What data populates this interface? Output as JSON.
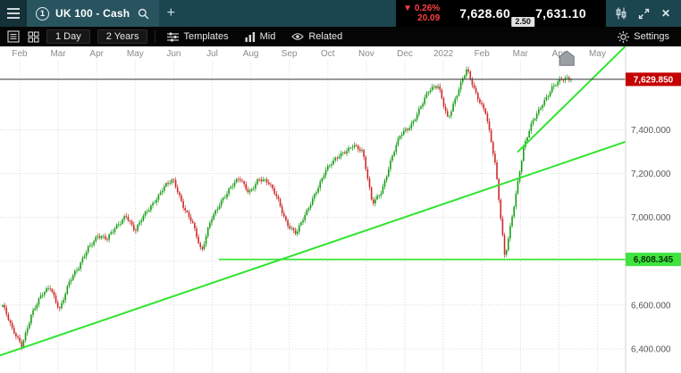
{
  "topbar": {
    "instrument_badge": "1",
    "title": "UK 100 - Cash",
    "add_label": "+",
    "change_arrow": "▼",
    "change_pct": "0.26%",
    "change_abs": "20.09",
    "sell_price": "7,628.60",
    "buy_price": "7,631.10",
    "spread": "2.50",
    "close_label": "✕"
  },
  "toolbar": {
    "interval": "1 Day",
    "range": "2 Years",
    "templates": "Templates",
    "price_type": "Mid",
    "related": "Related",
    "settings": "Settings"
  },
  "chart_data": {
    "type": "candlestick",
    "x_labels": [
      "Feb",
      "Mar",
      "Apr",
      "May",
      "Jun",
      "Jul",
      "Aug",
      "Sep",
      "Oct",
      "Nov",
      "Dec",
      "2022",
      "Feb",
      "Mar",
      "Apr",
      "May"
    ],
    "y_axis": {
      "range": [
        6290,
        7780
      ],
      "grid_values": [
        7400,
        7200,
        7000,
        6800,
        6600,
        6400
      ],
      "ticks": [
        {
          "value": 7400,
          "label": "7,400.000"
        },
        {
          "value": 7200,
          "label": "7,200.000"
        },
        {
          "value": 7000,
          "label": "7,000.000"
        },
        {
          "value": 6600,
          "label": "6,600.000"
        },
        {
          "value": 6400,
          "label": "6,400.000"
        }
      ]
    },
    "current_price": {
      "value": 7629.85,
      "label": "7,629.850"
    },
    "support": {
      "value": 6808.345,
      "label": "6,808.345",
      "x_start_frac": 0.35
    },
    "trendlines": [
      {
        "x1_frac": 0.0,
        "price1": 6370,
        "x2_frac": 1.0,
        "price2": 7345
      },
      {
        "x1_frac": 0.828,
        "price1": 7300,
        "x2_frac": 1.003,
        "price2": 7790
      }
    ],
    "weekly_closes": [
      6600,
      6480,
      6420,
      6560,
      6630,
      6680,
      6590,
      6700,
      6760,
      6870,
      6920,
      6890,
      6960,
      7020,
      6930,
      7010,
      7080,
      7140,
      7160,
      7060,
      6990,
      6830,
      6990,
      7080,
      7130,
      7170,
      7120,
      7180,
      7150,
      7090,
      6980,
      6920,
      7010,
      7120,
      7210,
      7250,
      7300,
      7340,
      7290,
      7060,
      7130,
      7260,
      7370,
      7420,
      7500,
      7570,
      7600,
      7460,
      7560,
      7670,
      7570,
      7480,
      7230,
      6820,
      7070,
      7310,
      7440,
      7530,
      7590,
      7620,
      7640
    ],
    "candles_per_week": 5,
    "marker": {
      "x_frac": 0.906,
      "price": 7730
    },
    "colors": {
      "up": "#169e16",
      "down": "#cc2a2a",
      "trend": "#2ee52e",
      "current_line": "#333333",
      "badge_price_bg": "#c40000",
      "badge_support_bg": "#3fe43f",
      "grid": "#dcdcdc",
      "axis_text": "#555555",
      "month_text": "#8a8a8a"
    }
  }
}
